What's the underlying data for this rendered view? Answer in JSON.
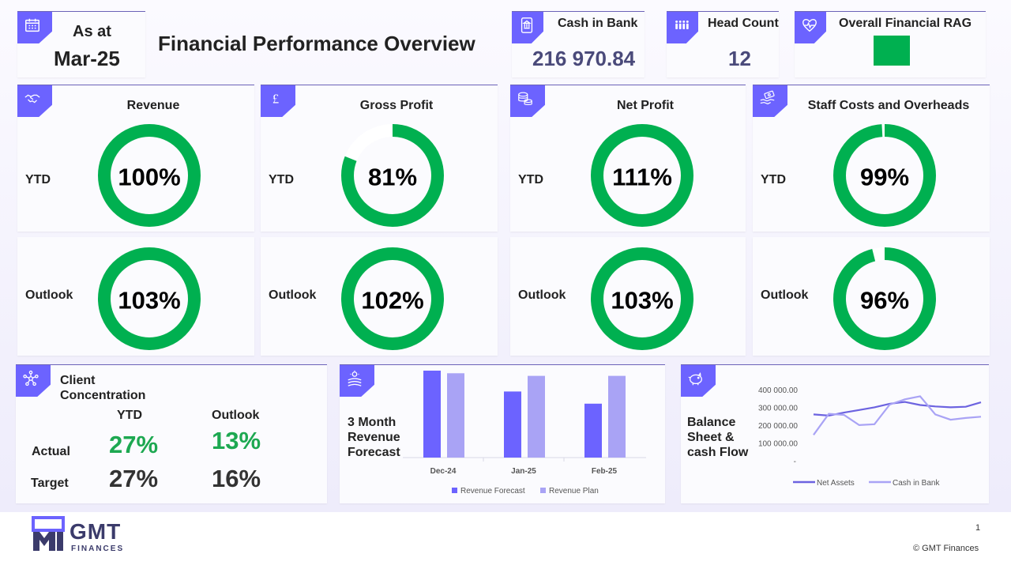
{
  "header": {
    "as_at_label": "As at",
    "as_at_date": "Mar-25",
    "title": "Financial Performance Overview",
    "cash_label": "Cash in Bank",
    "cash_value": "216 970.84",
    "head_count_label": "Head Count",
    "head_count_value": "12",
    "rag_label": "Overall Financial RAG",
    "rag_color": "#00b050"
  },
  "metrics": [
    {
      "title": "Revenue",
      "icon": "handshake-icon",
      "ytd_label": "YTD",
      "ytd_value": "100%",
      "ytd_fraction": 1.0,
      "outlook_label": "Outlook",
      "outlook_value": "103%",
      "outlook_fraction": 1.0
    },
    {
      "title": "Gross Profit",
      "icon": "pound-icon",
      "ytd_label": "YTD",
      "ytd_value": "81%",
      "ytd_fraction": 0.81,
      "outlook_label": "Outlook",
      "outlook_value": "102%",
      "outlook_fraction": 1.0
    },
    {
      "title": "Net Profit",
      "icon": "coins-icon",
      "ytd_label": "YTD",
      "ytd_value": "111%",
      "ytd_fraction": 1.0,
      "outlook_label": "Outlook",
      "outlook_value": "103%",
      "outlook_fraction": 1.0
    },
    {
      "title": "Staff Costs and Overheads",
      "icon": "hand-money-icon",
      "ytd_label": "YTD",
      "ytd_value": "99%",
      "ytd_fraction": 0.99,
      "outlook_label": "Outlook",
      "outlook_value": "96%",
      "outlook_fraction": 0.96
    }
  ],
  "client_concentration": {
    "title": "Client Concentration",
    "ytd_label": "YTD",
    "outlook_label": "Outlook",
    "actual_label": "Actual",
    "target_label": "Target",
    "actual_ytd": "27%",
    "actual_outlook": "13%",
    "target_ytd": "27%",
    "target_outlook": "16%"
  },
  "revenue_forecast": {
    "title": "3 Month Revenue Forecast",
    "chart_data": {
      "type": "bar",
      "categories": [
        "Dec-24",
        "Jan-25",
        "Feb-25"
      ],
      "series": [
        {
          "name": "Revenue Forecast",
          "values": [
            100,
            76,
            62
          ],
          "color": "#6c63ff"
        },
        {
          "name": "Revenue Plan",
          "values": [
            97,
            94,
            94
          ],
          "color": "#a9a3f5"
        }
      ]
    }
  },
  "balance_sheet": {
    "title": "Balance Sheet & cash Flow",
    "chart_data": {
      "type": "line",
      "y_ticks": [
        "400 000.00",
        "300 000.00",
        "200 000.00",
        "100 000.00",
        "-"
      ],
      "ylim": [
        0,
        400000
      ],
      "series": [
        {
          "name": "Net Assets",
          "color": "#6c63e0",
          "values": [
            265000,
            258000,
            275000,
            290000,
            305000,
            325000,
            335000,
            318000,
            310000,
            305000,
            308000,
            333000
          ]
        },
        {
          "name": "Cash in Bank",
          "color": "#a9a3f5",
          "values": [
            150000,
            268000,
            262000,
            205000,
            210000,
            320000,
            350000,
            367000,
            265000,
            235000,
            245000,
            252000
          ]
        }
      ]
    }
  },
  "footer": {
    "logo_text": "GMT",
    "logo_sub": "FINANCES",
    "page_number": "1",
    "copyright": "© GMT Finances"
  }
}
